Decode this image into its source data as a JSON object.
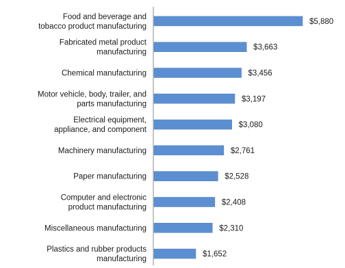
{
  "chart_data": {
    "type": "bar",
    "orientation": "horizontal",
    "title": "",
    "xlabel": "",
    "ylabel": "",
    "categories": [
      [
        "Food and beverage and",
        "tobacco product manufacturing"
      ],
      [
        "Fabricated metal product",
        "manufacturing"
      ],
      [
        "Chemical manufacturing"
      ],
      [
        "Motor vehicle, body, trailer, and",
        "parts manufacturing"
      ],
      [
        "Electrical equipment,",
        "appliance, and component"
      ],
      [
        "Machinery manufacturing"
      ],
      [
        "Paper manufacturing"
      ],
      [
        "Computer and electronic",
        "product manufacturing"
      ],
      [
        "Miscellaneous manufacturing"
      ],
      [
        "Plastics and rubber products",
        "manufacturing"
      ]
    ],
    "values": [
      5880,
      3663,
      3456,
      3197,
      3080,
      2761,
      2528,
      2408,
      2310,
      1652
    ],
    "value_labels": [
      "$5,880",
      "$3,663",
      "$3,456",
      "$3,197",
      "$3,080",
      "$2,761",
      "$2,528",
      "$2,408",
      "$2,310",
      "$1,652"
    ],
    "xlim": [
      0,
      6000
    ],
    "grid": false,
    "legend": "none",
    "bar_color": "#5b8fd1"
  }
}
